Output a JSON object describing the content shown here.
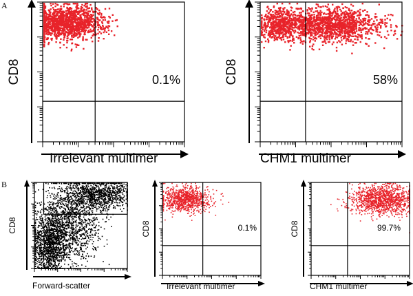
{
  "figure": {
    "panel_A_label": "A",
    "panel_B_label": "B"
  },
  "colors": {
    "dot": "#e8232a",
    "dot_black": "#000000",
    "axis": "#000000"
  },
  "chart_data": [
    {
      "id": "A-left",
      "type": "scatter",
      "panel": "A",
      "xlabel": "Irrelevant multimer",
      "ylabel": "CD8",
      "gate_label": "0.1%",
      "x_scale": "log",
      "y_scale": "log",
      "xlim": [
        0,
        1
      ],
      "ylim": [
        0,
        1
      ],
      "quadrant_gate": {
        "x": 0.37,
        "y": 0.29
      },
      "populations": [
        {
          "cx": 0.16,
          "cy": 0.86,
          "sx": 0.14,
          "sy": 0.06,
          "n": 1400
        }
      ]
    },
    {
      "id": "A-right",
      "type": "scatter",
      "panel": "A",
      "xlabel": "CHM1 multimer",
      "ylabel": "CD8",
      "gate_label": "58%",
      "x_scale": "log",
      "y_scale": "log",
      "xlim": [
        0,
        1
      ],
      "ylim": [
        0,
        1
      ],
      "quadrant_gate": {
        "x": 0.32,
        "y": 0.29
      },
      "populations": [
        {
          "cx": 0.15,
          "cy": 0.84,
          "sx": 0.08,
          "sy": 0.06,
          "n": 550
        },
        {
          "cx": 0.5,
          "cy": 0.84,
          "sx": 0.18,
          "sy": 0.06,
          "n": 1300
        }
      ]
    },
    {
      "id": "B-left",
      "type": "scatter",
      "panel": "B",
      "dot_color": "black",
      "xlabel": "Forward-scatter",
      "ylabel": "CD8",
      "gate_label": "",
      "xlim": [
        0,
        1
      ],
      "ylim": [
        0,
        1
      ],
      "gate_box": {
        "x0": 0.1,
        "x1": 1.0,
        "y0": 0.63,
        "y1": 1.0
      },
      "populations": [
        {
          "cx": 0.16,
          "cy": 0.28,
          "sx": 0.1,
          "sy": 0.22,
          "n": 1400
        },
        {
          "cx": 0.4,
          "cy": 0.55,
          "sx": 0.15,
          "sy": 0.25,
          "n": 1200
        },
        {
          "cx": 0.7,
          "cy": 0.86,
          "sx": 0.18,
          "sy": 0.08,
          "n": 900
        }
      ]
    },
    {
      "id": "B-middle",
      "type": "scatter",
      "panel": "B",
      "xlabel": "Irrelevant multimer",
      "ylabel": "CD8",
      "gate_label": "0.1%",
      "xlim": [
        0,
        1
      ],
      "ylim": [
        0,
        1
      ],
      "quadrant_gate": {
        "x": 0.41,
        "y": 0.32
      },
      "populations": [
        {
          "cx": 0.24,
          "cy": 0.82,
          "sx": 0.12,
          "sy": 0.07,
          "n": 900
        }
      ]
    },
    {
      "id": "B-right",
      "type": "scatter",
      "panel": "B",
      "xlabel": "CHM1 multimer",
      "ylabel": "CD8",
      "gate_label": "99.7%",
      "xlim": [
        0,
        1
      ],
      "ylim": [
        0,
        1
      ],
      "quadrant_gate": {
        "x": 0.37,
        "y": 0.32
      },
      "populations": [
        {
          "cx": 0.72,
          "cy": 0.82,
          "sx": 0.17,
          "sy": 0.08,
          "n": 1200
        }
      ]
    }
  ]
}
